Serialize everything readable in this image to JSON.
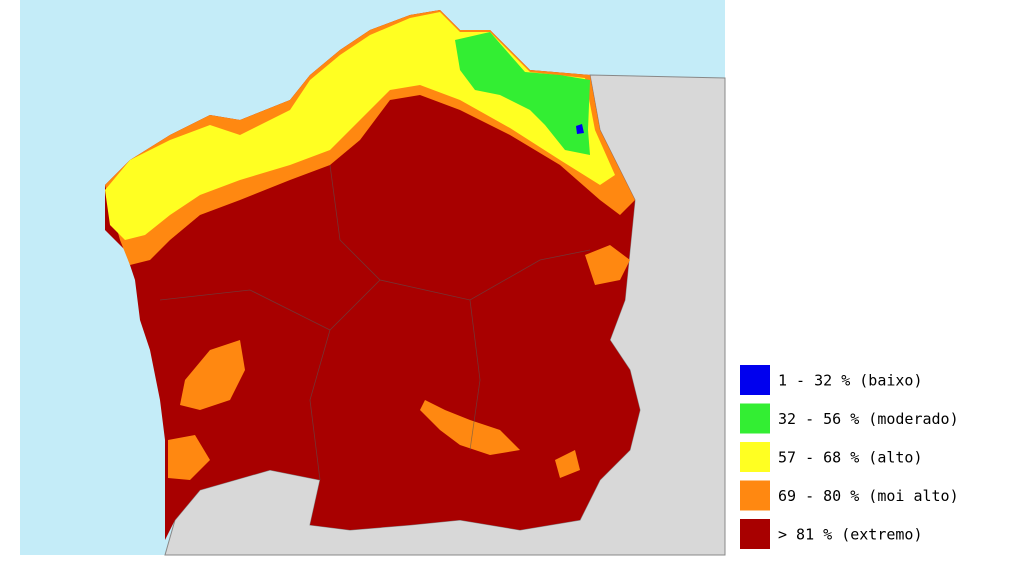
{
  "legend": {
    "items": [
      {
        "label": "1 - 32 % (baixo)",
        "color": "#0000ee"
      },
      {
        "label": "32 - 56 % (moderado)",
        "color": "#33ee33"
      },
      {
        "label": "57 - 68 % (alto)",
        "color": "#ffff22"
      },
      {
        "label": "69 - 80 % (moi alto)",
        "color": "#ff8811"
      },
      {
        "label": "> 81 % (extremo)",
        "color": "#a80000"
      }
    ]
  }
}
